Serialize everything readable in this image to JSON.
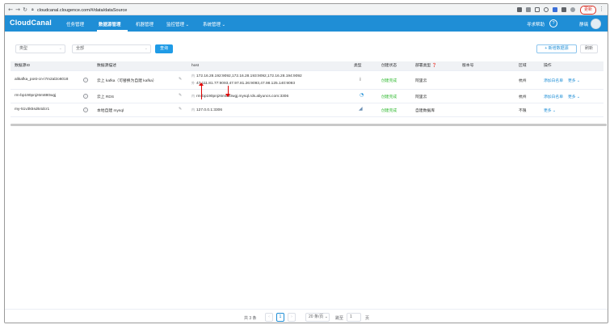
{
  "browser": {
    "url": "cloudcanal.clougence.com/#/data/dataSource",
    "update_label": "更新"
  },
  "app": {
    "logo": "CloudCanal",
    "menu": [
      {
        "label": "任务管理"
      },
      {
        "label": "数据源管理"
      },
      {
        "label": "机器管理"
      },
      {
        "label": "监控管理 ⌄"
      },
      {
        "label": "系统管理 ⌄"
      }
    ],
    "help_label": "寻求帮助",
    "help_icon": "?",
    "user_name": "静璃"
  },
  "filters": {
    "type_placeholder": "类型",
    "all_value": "全部",
    "query_label": "查询",
    "add_label": "+ 新增数据源",
    "refresh_label": "刷新"
  },
  "table": {
    "headers": [
      "数据源ID",
      "数据源描述",
      "host",
      "类型",
      "创建状态",
      "部署类型 ❓",
      "版本号",
      "区域",
      "操作"
    ],
    "rows": [
      {
        "id": "alikafka_post-cn-i7m2al2o6018",
        "desc": "云上 kafka（可替换为自建 kafka）",
        "host_inner_tag": "内",
        "host_inner": "172.16.28.192:9092,172.16.28.193:9092,172.16.28.194:9092",
        "host_outer_tag": "外",
        "host_outer": "47.111.81.77:9093,47.97.81.26:9093,47.98.125.140:9093",
        "status": "创建完成",
        "deploy": "阿里云",
        "version": "",
        "region": "杭州",
        "action1": "添加白名单",
        "action2": "更多 ⌄"
      },
      {
        "id": "rm-bp190pnjz6m880wgj",
        "desc": "云上 RDS",
        "host_inner_tag": "内",
        "host_inner": "rm-bp190pnjz6m880wgj.mysql.rds.aliyuncs.com:3306",
        "status": "创建完成",
        "deploy": "阿里云",
        "version": "",
        "region": "杭州",
        "action1": "添加白名单",
        "action2": "更多 ⌄"
      },
      {
        "id": "my-51v3k5sd64dcr1",
        "desc": "本地自建 mysql",
        "host_inner_tag": "内",
        "host_inner": "127.0.0.1:3306",
        "status": "创建完成",
        "deploy": "自建数据库",
        "version": "",
        "region": "不限",
        "action2": "更多 ⌄"
      }
    ]
  },
  "pagination": {
    "total": "共 3 条",
    "prev": "‹",
    "page": "1",
    "next": "›",
    "page_size": "20 条/页 ⌄",
    "goto_label": "跳至",
    "goto_value": "1",
    "page_suffix": "页"
  },
  "colors": {
    "brand": "#1f8ed6",
    "success": "#2eb82e",
    "annotation": "#e00000"
  }
}
